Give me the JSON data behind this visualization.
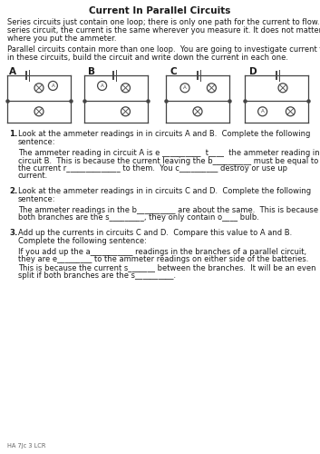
{
  "title": "Current In Parallel Circuits",
  "p1_lines": [
    "Series circuits just contain one loop; there is only one path for the current to flow.  In a",
    "series circuit, the current is the same wherever you measure it. It does not matter",
    "where you put the ammeter."
  ],
  "p2_lines": [
    "Parallel circuits contain more than one loop.  You are going to investigate current flow",
    "in these circuits, build the circuit and write down the current in each one."
  ],
  "circuit_labels": [
    "A",
    "B",
    "C",
    "D"
  ],
  "q1_intro": "Look at the ammeter readings in in circuits A and B.  Complete the following",
  "q1_intro2": "sentence:",
  "q1_body": [
    "The ammeter reading in circuit A is e __________  t____  the ammeter reading in",
    "circuit B.  This is because the current leaving the b__________ must be equal to",
    "the current r______________ to them.  You c__________ destroy or use up",
    "current."
  ],
  "q2_intro": "Look at the ammeter readings in in circuits C and D.  Complete the following",
  "q2_intro2": "sentence:",
  "q2_body": [
    "The ammeter readings in the b__________ are about the same.  This is because",
    "both branches are the s_________, they only contain o____ bulb."
  ],
  "q3_intro": "Add up the currents in circuits C and D.  Compare this value to A and B.",
  "q3_intro2": "Complete the following sentence:",
  "q3_body": [
    "If you add up the a___________ readings in the branches of a parallel circuit,",
    "they are e_________ to the ammeter readings on either side of the batteries.",
    "This is because the current s_______ between the branches.  It will be an even",
    "split if both branches are the s__________."
  ],
  "footer": "HA 7Jc 3 LCR",
  "bg_color": "#ffffff",
  "text_color": "#1a1a1a",
  "circuit_color": "#444444"
}
